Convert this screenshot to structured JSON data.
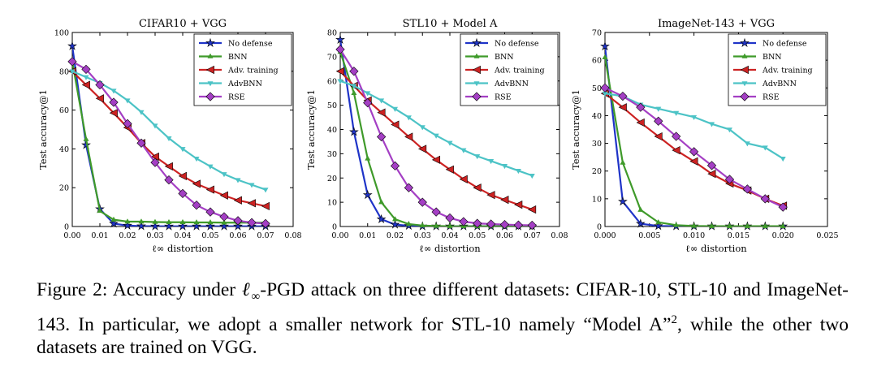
{
  "caption": {
    "figure_label": "Figure 2:",
    "text_before_symbol": " Accuracy under ",
    "symbol_main": "ℓ",
    "symbol_sub": "∞",
    "text_after_symbol": "-PGD attack on three different datasets: CIFAR-10, STL-10 and ImageNet-143. In particular, we adopt a smaller network for STL-10 namely “Model A”",
    "footnote_mark": "2",
    "text_end": ", while the other two datasets are trained on VGG."
  },
  "series_colors": {
    "No defense": "#1f34c8",
    "BNN": "#3f9a2a",
    "Adv. training": "#cc2222",
    "AdvBNN": "#4cc3c6",
    "RSE": "#a43fc4"
  },
  "chart_data": [
    {
      "type": "line",
      "title": "CIFAR10 + VGG",
      "xlabel": "ℓ∞ distortion",
      "ylabel": "Test accuracy@1",
      "xlim": [
        0.0,
        0.08
      ],
      "ylim": [
        0,
        100
      ],
      "xticks": [
        "0.00",
        "0.01",
        "0.02",
        "0.03",
        "0.04",
        "0.05",
        "0.06",
        "0.07",
        "0.08"
      ],
      "yticks": [
        "0",
        "20",
        "40",
        "60",
        "80",
        "100"
      ],
      "legend_position": "top-right",
      "series": [
        {
          "name": "No defense",
          "marker": "star",
          "points": [
            [
              0.0,
              93
            ],
            [
              0.005,
              42
            ],
            [
              0.01,
              9
            ],
            [
              0.015,
              1.5
            ],
            [
              0.02,
              0.5
            ],
            [
              0.025,
              0.2
            ],
            [
              0.03,
              0.1
            ],
            [
              0.035,
              0.1
            ],
            [
              0.04,
              0.1
            ],
            [
              0.045,
              0.1
            ],
            [
              0.05,
              0.1
            ],
            [
              0.055,
              0.1
            ],
            [
              0.06,
              0.1
            ],
            [
              0.065,
              0.1
            ],
            [
              0.07,
              0.1
            ]
          ]
        },
        {
          "name": "BNN",
          "marker": "tri_up",
          "points": [
            [
              0.0,
              85
            ],
            [
              0.005,
              45
            ],
            [
              0.01,
              8
            ],
            [
              0.015,
              3.5
            ],
            [
              0.02,
              2.5
            ],
            [
              0.025,
              2.5
            ],
            [
              0.03,
              2.3
            ],
            [
              0.035,
              2.2
            ],
            [
              0.04,
              2.2
            ],
            [
              0.045,
              2.1
            ],
            [
              0.05,
              2.1
            ],
            [
              0.055,
              2.0
            ],
            [
              0.06,
              2.0
            ],
            [
              0.065,
              2.0
            ],
            [
              0.07,
              2.0
            ]
          ]
        },
        {
          "name": "Adv. training",
          "marker": "tri_left",
          "points": [
            [
              0.0,
              80
            ],
            [
              0.005,
              73
            ],
            [
              0.01,
              66
            ],
            [
              0.015,
              58.5
            ],
            [
              0.02,
              51
            ],
            [
              0.025,
              43
            ],
            [
              0.03,
              36
            ],
            [
              0.035,
              31
            ],
            [
              0.04,
              26
            ],
            [
              0.045,
              22
            ],
            [
              0.05,
              19
            ],
            [
              0.055,
              16
            ],
            [
              0.06,
              13.5
            ],
            [
              0.065,
              12
            ],
            [
              0.07,
              10.5
            ]
          ]
        },
        {
          "name": "AdvBNN",
          "marker": "tri_down",
          "points": [
            [
              0.0,
              80
            ],
            [
              0.005,
              77
            ],
            [
              0.01,
              74
            ],
            [
              0.015,
              70
            ],
            [
              0.02,
              65
            ],
            [
              0.025,
              59
            ],
            [
              0.03,
              52
            ],
            [
              0.035,
              45.5
            ],
            [
              0.04,
              40
            ],
            [
              0.045,
              35
            ],
            [
              0.05,
              31
            ],
            [
              0.055,
              27
            ],
            [
              0.06,
              24
            ],
            [
              0.065,
              21.5
            ],
            [
              0.07,
              19
            ]
          ]
        },
        {
          "name": "RSE",
          "marker": "diamond",
          "points": [
            [
              0.0,
              85
            ],
            [
              0.005,
              81
            ],
            [
              0.01,
              73
            ],
            [
              0.015,
              64
            ],
            [
              0.02,
              53
            ],
            [
              0.025,
              43
            ],
            [
              0.03,
              33
            ],
            [
              0.035,
              24
            ],
            [
              0.04,
              17
            ],
            [
              0.045,
              11
            ],
            [
              0.05,
              7.5
            ],
            [
              0.055,
              5
            ],
            [
              0.06,
              3
            ],
            [
              0.065,
              2
            ],
            [
              0.07,
              1.5
            ]
          ]
        }
      ]
    },
    {
      "type": "line",
      "title": "STL10 + Model A",
      "xlabel": "ℓ∞ distortion",
      "ylabel": "Test accuracy@1",
      "xlim": [
        0.0,
        0.08
      ],
      "ylim": [
        0,
        80
      ],
      "xticks": [
        "0.00",
        "0.01",
        "0.02",
        "0.03",
        "0.04",
        "0.05",
        "0.06",
        "0.07",
        "0.08"
      ],
      "yticks": [
        "0",
        "10",
        "20",
        "30",
        "40",
        "50",
        "60",
        "70",
        "80"
      ],
      "legend_position": "top-right",
      "series": [
        {
          "name": "No defense",
          "marker": "star",
          "points": [
            [
              0.0,
              77
            ],
            [
              0.005,
              39
            ],
            [
              0.01,
              13
            ],
            [
              0.015,
              3
            ],
            [
              0.02,
              0.8
            ],
            [
              0.025,
              0.3
            ],
            [
              0.03,
              0.1
            ],
            [
              0.035,
              0.1
            ],
            [
              0.04,
              0.1
            ],
            [
              0.045,
              0.1
            ],
            [
              0.05,
              0.1
            ],
            [
              0.055,
              0.1
            ],
            [
              0.06,
              0.1
            ],
            [
              0.065,
              0.1
            ],
            [
              0.07,
              0.1
            ]
          ]
        },
        {
          "name": "BNN",
          "marker": "tri_up",
          "points": [
            [
              0.0,
              72
            ],
            [
              0.005,
              55
            ],
            [
              0.01,
              28
            ],
            [
              0.015,
              10
            ],
            [
              0.02,
              3
            ],
            [
              0.025,
              1
            ],
            [
              0.03,
              0.4
            ],
            [
              0.035,
              0.2
            ],
            [
              0.04,
              0.1
            ],
            [
              0.045,
              0.1
            ],
            [
              0.05,
              0.1
            ],
            [
              0.055,
              0.1
            ],
            [
              0.06,
              0.1
            ],
            [
              0.065,
              0.1
            ],
            [
              0.07,
              0.1
            ]
          ]
        },
        {
          "name": "Adv. training",
          "marker": "tri_left",
          "points": [
            [
              0.0,
              64
            ],
            [
              0.005,
              58
            ],
            [
              0.01,
              52
            ],
            [
              0.015,
              47
            ],
            [
              0.02,
              42
            ],
            [
              0.025,
              37
            ],
            [
              0.03,
              32
            ],
            [
              0.035,
              27.5
            ],
            [
              0.04,
              23.5
            ],
            [
              0.045,
              19.5
            ],
            [
              0.05,
              16
            ],
            [
              0.055,
              13
            ],
            [
              0.06,
              11
            ],
            [
              0.065,
              9
            ],
            [
              0.07,
              7
            ]
          ]
        },
        {
          "name": "AdvBNN",
          "marker": "tri_down",
          "points": [
            [
              0.0,
              60
            ],
            [
              0.005,
              58
            ],
            [
              0.01,
              55
            ],
            [
              0.015,
              52
            ],
            [
              0.02,
              48.5
            ],
            [
              0.025,
              45
            ],
            [
              0.03,
              41
            ],
            [
              0.035,
              37.5
            ],
            [
              0.04,
              34.5
            ],
            [
              0.045,
              31.5
            ],
            [
              0.05,
              29
            ],
            [
              0.055,
              27
            ],
            [
              0.06,
              25
            ],
            [
              0.065,
              23
            ],
            [
              0.07,
              21
            ]
          ]
        },
        {
          "name": "RSE",
          "marker": "diamond",
          "points": [
            [
              0.0,
              73
            ],
            [
              0.005,
              64
            ],
            [
              0.01,
              51
            ],
            [
              0.015,
              37
            ],
            [
              0.02,
              25
            ],
            [
              0.025,
              16
            ],
            [
              0.03,
              10
            ],
            [
              0.035,
              6
            ],
            [
              0.04,
              3.5
            ],
            [
              0.045,
              2
            ],
            [
              0.05,
              1.3
            ],
            [
              0.055,
              1
            ],
            [
              0.06,
              0.8
            ],
            [
              0.065,
              0.6
            ],
            [
              0.07,
              0.5
            ]
          ]
        }
      ]
    },
    {
      "type": "line",
      "title": "ImageNet-143 + VGG",
      "xlabel": "ℓ∞ distortion",
      "ylabel": "Test accuracy@1",
      "xlim": [
        0.0,
        0.025
      ],
      "ylim": [
        0,
        70
      ],
      "xticks": [
        "0.000",
        "0.005",
        "0.010",
        "0.015",
        "0.020",
        "0.025"
      ],
      "yticks": [
        "0",
        "10",
        "20",
        "30",
        "40",
        "50",
        "60",
        "70"
      ],
      "legend_position": "top-right",
      "series": [
        {
          "name": "No defense",
          "marker": "star",
          "points": [
            [
              0.0,
              65
            ],
            [
              0.002,
              9
            ],
            [
              0.004,
              1
            ],
            [
              0.006,
              0.2
            ],
            [
              0.008,
              0.1
            ],
            [
              0.01,
              0.1
            ],
            [
              0.012,
              0.1
            ],
            [
              0.014,
              0.1
            ],
            [
              0.016,
              0.1
            ],
            [
              0.018,
              0.1
            ],
            [
              0.02,
              0.1
            ]
          ]
        },
        {
          "name": "BNN",
          "marker": "tri_up",
          "points": [
            [
              0.0,
              61
            ],
            [
              0.002,
              23
            ],
            [
              0.004,
              6
            ],
            [
              0.006,
              1.5
            ],
            [
              0.008,
              0.5
            ],
            [
              0.01,
              0.2
            ],
            [
              0.012,
              0.1
            ],
            [
              0.014,
              0.1
            ],
            [
              0.016,
              0.1
            ],
            [
              0.018,
              0.1
            ],
            [
              0.02,
              0.1
            ]
          ]
        },
        {
          "name": "Adv. training",
          "marker": "tri_left",
          "points": [
            [
              0.0,
              48
            ],
            [
              0.002,
              43
            ],
            [
              0.004,
              37.5
            ],
            [
              0.006,
              32.5
            ],
            [
              0.008,
              27.5
            ],
            [
              0.01,
              23.5
            ],
            [
              0.012,
              19
            ],
            [
              0.014,
              15.5
            ],
            [
              0.016,
              13
            ],
            [
              0.018,
              10
            ],
            [
              0.02,
              7.5
            ]
          ]
        },
        {
          "name": "AdvBNN",
          "marker": "tri_down",
          "points": [
            [
              0.0,
              48
            ],
            [
              0.002,
              47
            ],
            [
              0.004,
              44
            ],
            [
              0.006,
              42.5
            ],
            [
              0.008,
              41
            ],
            [
              0.01,
              39.5
            ],
            [
              0.012,
              37
            ],
            [
              0.014,
              35
            ],
            [
              0.016,
              30
            ],
            [
              0.018,
              28.5
            ],
            [
              0.02,
              24.5
            ]
          ]
        },
        {
          "name": "RSE",
          "marker": "diamond",
          "points": [
            [
              0.0,
              50
            ],
            [
              0.002,
              47
            ],
            [
              0.004,
              43
            ],
            [
              0.006,
              38
            ],
            [
              0.008,
              32.5
            ],
            [
              0.01,
              27
            ],
            [
              0.012,
              22
            ],
            [
              0.014,
              17
            ],
            [
              0.016,
              13.5
            ],
            [
              0.018,
              10
            ],
            [
              0.02,
              7
            ]
          ]
        }
      ]
    }
  ]
}
